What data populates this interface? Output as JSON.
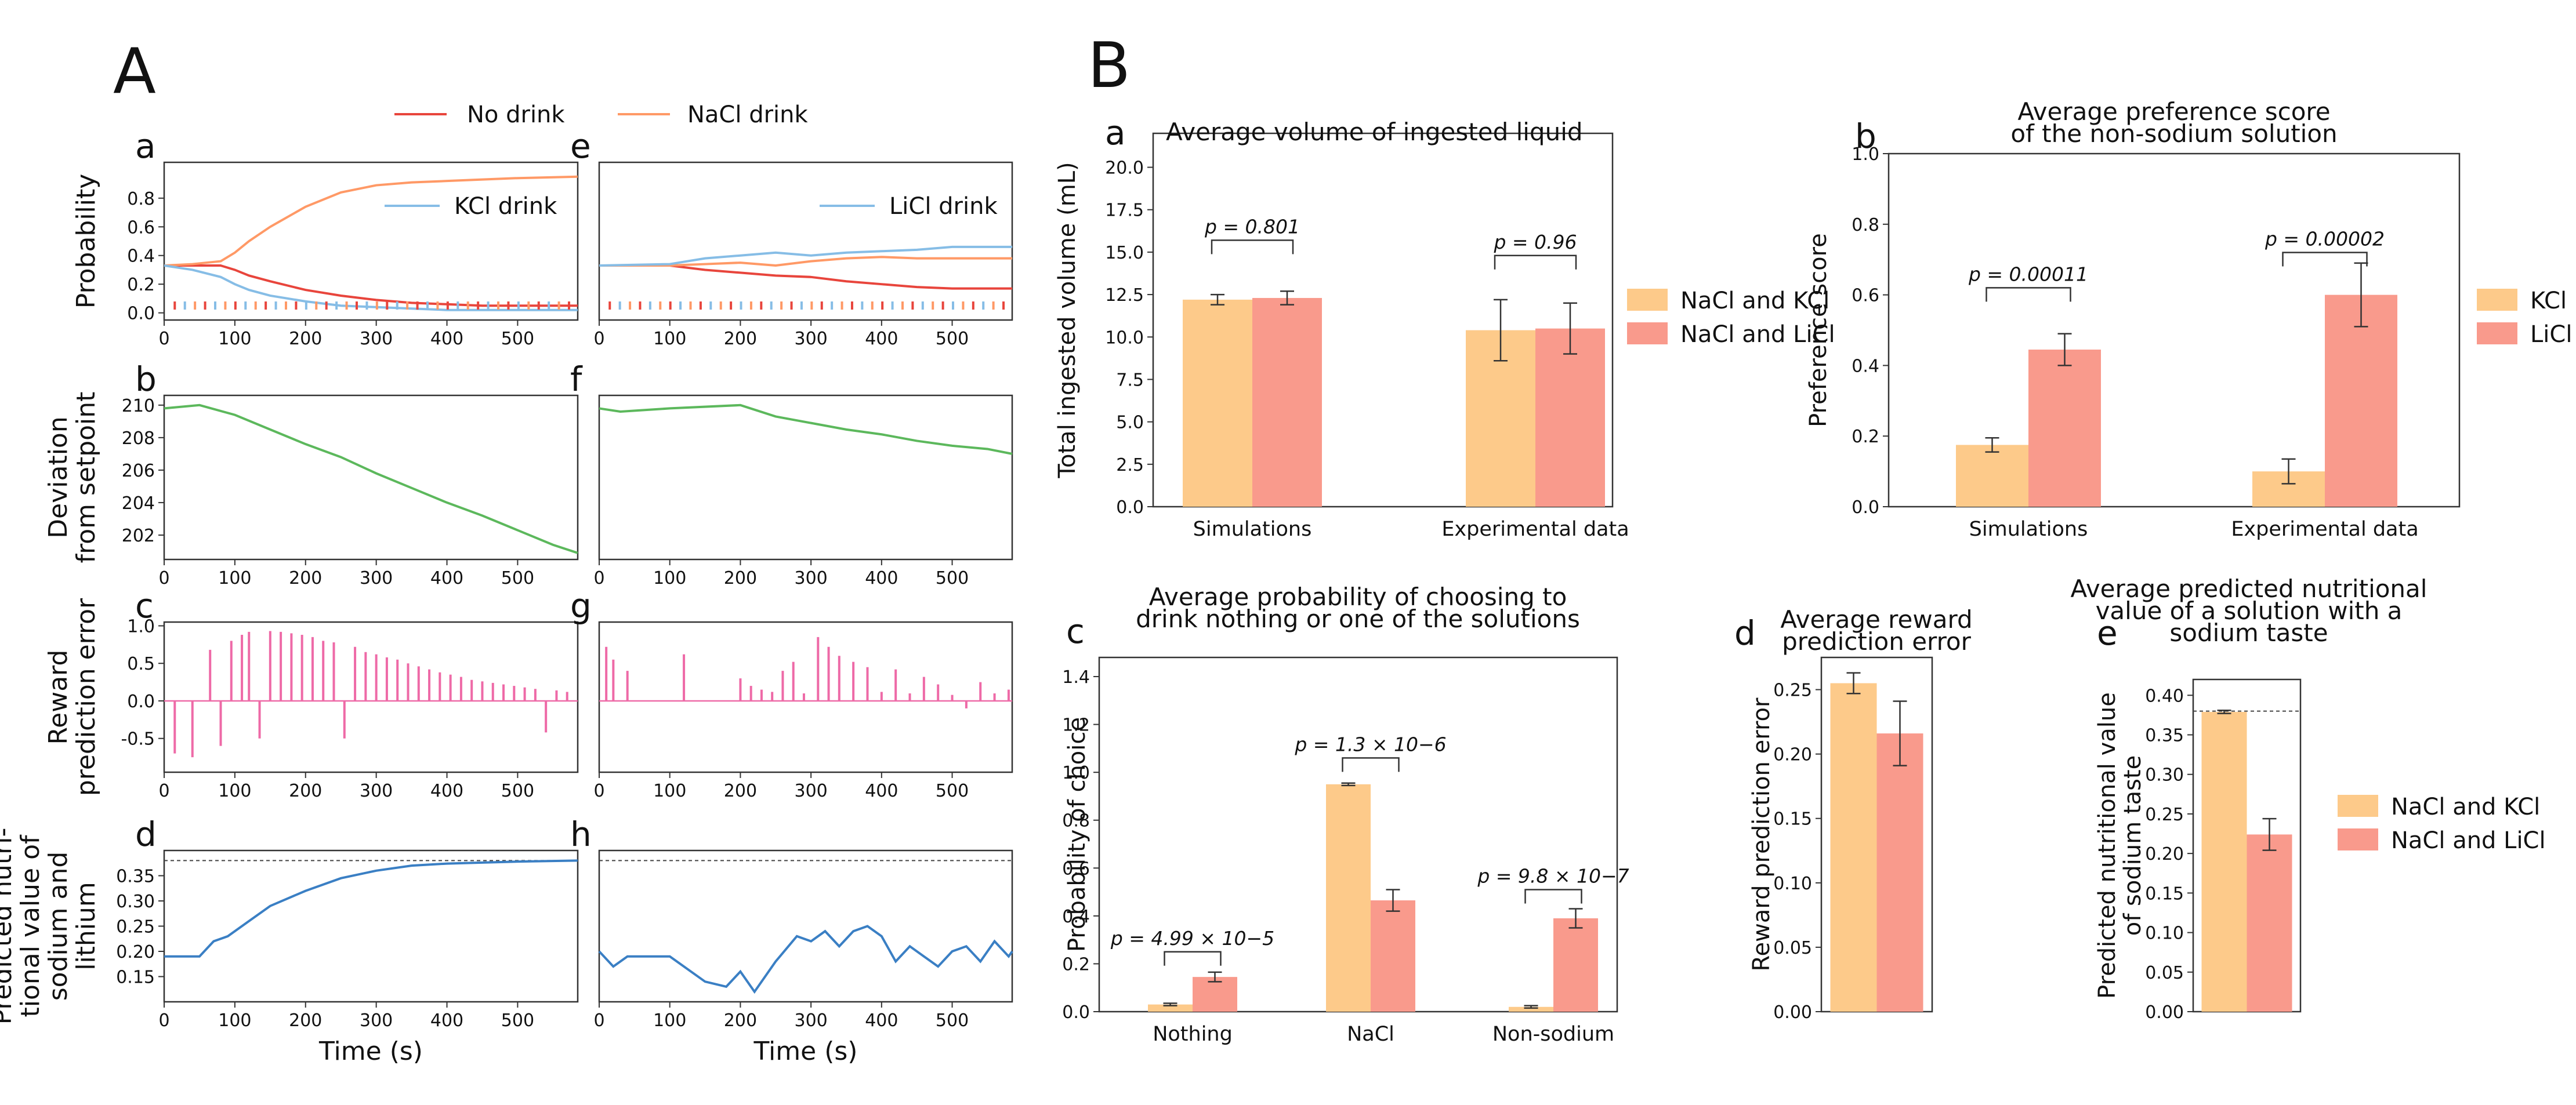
{
  "panel_labels": {
    "A": "A",
    "B": "B"
  },
  "colors": {
    "no_drink": "#e8453c",
    "nacl_drink": "#ff9966",
    "kcl_drink": "#86bde6",
    "licl_drink": "#86bde6",
    "deviation": "#5cb85c",
    "rpe": "#ee6aa7",
    "predicted": "#3a7fc4",
    "bar_orange": "#fdca8a",
    "bar_red": "#f99a8c"
  },
  "legend_A": {
    "no_drink": "No drink",
    "nacl_drink": "NaCl drink",
    "kcl_drink": "KCl drink",
    "licl_drink": "LiCl drink"
  },
  "chart_data": [
    {
      "id": "A.a",
      "type": "line",
      "label": "a",
      "ylabel": "Probability",
      "xlim": [
        0,
        585
      ],
      "ylim": [
        -0.05,
        1.05
      ],
      "xticks": [
        0,
        100,
        200,
        300,
        400,
        500
      ],
      "yticks": [
        0.0,
        0.2,
        0.4,
        0.6,
        0.8
      ],
      "x": [
        0,
        40,
        80,
        100,
        120,
        150,
        200,
        250,
        300,
        350,
        400,
        450,
        500,
        585
      ],
      "series": [
        {
          "name": "No drink",
          "values": [
            0.33,
            0.33,
            0.33,
            0.3,
            0.26,
            0.22,
            0.16,
            0.12,
            0.09,
            0.07,
            0.06,
            0.05,
            0.05,
            0.05
          ]
        },
        {
          "name": "NaCl drink",
          "values": [
            0.33,
            0.34,
            0.36,
            0.42,
            0.5,
            0.6,
            0.74,
            0.84,
            0.89,
            0.91,
            0.92,
            0.93,
            0.94,
            0.95
          ]
        },
        {
          "name": "KCl drink",
          "values": [
            0.33,
            0.3,
            0.25,
            0.2,
            0.16,
            0.12,
            0.08,
            0.05,
            0.04,
            0.03,
            0.02,
            0.02,
            0.02,
            0.02
          ]
        }
      ]
    },
    {
      "id": "A.e",
      "type": "line",
      "label": "e",
      "xlim": [
        0,
        585
      ],
      "ylim": [
        -0.05,
        1.05
      ],
      "xticks": [
        0,
        100,
        200,
        300,
        400,
        500
      ],
      "x": [
        0,
        100,
        150,
        200,
        250,
        300,
        350,
        400,
        450,
        500,
        585
      ],
      "series": [
        {
          "name": "No drink",
          "values": [
            0.33,
            0.33,
            0.3,
            0.28,
            0.26,
            0.25,
            0.22,
            0.2,
            0.18,
            0.17,
            0.17
          ]
        },
        {
          "name": "NaCl drink",
          "values": [
            0.33,
            0.33,
            0.34,
            0.35,
            0.33,
            0.36,
            0.38,
            0.39,
            0.38,
            0.38,
            0.38
          ]
        },
        {
          "name": "LiCl drink",
          "values": [
            0.33,
            0.34,
            0.38,
            0.4,
            0.42,
            0.4,
            0.42,
            0.43,
            0.44,
            0.46,
            0.46
          ]
        }
      ]
    },
    {
      "id": "A.b",
      "type": "line",
      "label": "b",
      "ylabel": "Deviation\nfrom setpoint",
      "xlim": [
        0,
        585
      ],
      "ylim": [
        200.5,
        210.6
      ],
      "xticks": [
        0,
        100,
        200,
        300,
        400,
        500
      ],
      "yticks": [
        202,
        204,
        206,
        208,
        210
      ],
      "x": [
        0,
        50,
        100,
        150,
        200,
        250,
        300,
        350,
        400,
        450,
        500,
        550,
        585
      ],
      "series": [
        {
          "name": "deviation",
          "values": [
            209.8,
            210.0,
            209.4,
            208.5,
            207.6,
            206.8,
            205.8,
            204.9,
            204.0,
            203.2,
            202.3,
            201.4,
            200.9
          ]
        }
      ]
    },
    {
      "id": "A.f",
      "type": "line",
      "label": "f",
      "xlim": [
        0,
        585
      ],
      "ylim": [
        200.5,
        210.6
      ],
      "xticks": [
        0,
        100,
        200,
        300,
        400,
        500
      ],
      "x": [
        0,
        30,
        100,
        200,
        250,
        300,
        350,
        400,
        450,
        500,
        550,
        585
      ],
      "series": [
        {
          "name": "deviation",
          "values": [
            209.8,
            209.6,
            209.8,
            210.0,
            209.3,
            208.9,
            208.5,
            208.2,
            207.8,
            207.5,
            207.3,
            207.0
          ]
        }
      ]
    },
    {
      "id": "A.c",
      "type": "stem",
      "label": "c",
      "ylabel": "Reward\nprediction error",
      "xlim": [
        0,
        585
      ],
      "ylim": [
        -0.95,
        1.05
      ],
      "xticks": [
        0,
        100,
        200,
        300,
        400,
        500
      ],
      "yticks": [
        -0.5,
        0.0,
        0.5,
        1.0
      ],
      "x": [
        15,
        40,
        65,
        80,
        95,
        110,
        120,
        135,
        150,
        165,
        180,
        195,
        210,
        225,
        240,
        255,
        270,
        285,
        300,
        315,
        330,
        345,
        360,
        375,
        390,
        405,
        420,
        435,
        450,
        465,
        480,
        495,
        510,
        525,
        540,
        555,
        570
      ],
      "values": [
        -0.7,
        -0.75,
        0.68,
        -0.6,
        0.8,
        0.88,
        0.92,
        -0.5,
        0.93,
        0.92,
        0.9,
        0.88,
        0.85,
        0.8,
        0.78,
        -0.5,
        0.72,
        0.65,
        0.62,
        0.58,
        0.55,
        0.5,
        0.46,
        0.42,
        0.38,
        0.35,
        0.32,
        0.28,
        0.26,
        0.24,
        0.22,
        0.2,
        0.18,
        0.16,
        -0.42,
        0.14,
        0.12
      ]
    },
    {
      "id": "A.g",
      "type": "stem",
      "label": "g",
      "xlim": [
        0,
        585
      ],
      "ylim": [
        -0.95,
        1.05
      ],
      "xticks": [
        0,
        100,
        200,
        300,
        400,
        500
      ],
      "x": [
        10,
        20,
        40,
        120,
        200,
        215,
        230,
        245,
        260,
        275,
        290,
        310,
        325,
        340,
        360,
        380,
        400,
        420,
        440,
        460,
        480,
        500,
        520,
        540,
        560,
        580
      ],
      "values": [
        0.72,
        0.55,
        0.4,
        0.62,
        0.3,
        0.2,
        0.15,
        0.12,
        0.4,
        0.52,
        0.1,
        0.85,
        0.72,
        0.6,
        0.52,
        0.45,
        0.12,
        0.42,
        0.1,
        0.32,
        0.22,
        0.08,
        -0.1,
        0.25,
        0.1,
        0.15
      ]
    },
    {
      "id": "A.d",
      "type": "line",
      "label": "d",
      "ylabel": "Predicted nutri-\ntional value of\nsodium and\nlithium",
      "xlabel": "Time (s)",
      "xlim": [
        0,
        585
      ],
      "ylim": [
        0.1,
        0.4
      ],
      "xticks": [
        0,
        100,
        200,
        300,
        400,
        500
      ],
      "yticks": [
        0.15,
        0.2,
        0.25,
        0.3,
        0.35
      ],
      "dashed_ref": 0.38,
      "x": [
        0,
        50,
        70,
        90,
        120,
        150,
        200,
        250,
        300,
        350,
        400,
        450,
        500,
        585
      ],
      "series": [
        {
          "name": "predicted",
          "values": [
            0.19,
            0.19,
            0.22,
            0.23,
            0.26,
            0.29,
            0.32,
            0.345,
            0.36,
            0.37,
            0.374,
            0.376,
            0.378,
            0.38
          ]
        }
      ]
    },
    {
      "id": "A.h",
      "type": "line",
      "label": "h",
      "xlabel": "Time (s)",
      "xlim": [
        0,
        585
      ],
      "ylim": [
        0.1,
        0.4
      ],
      "xticks": [
        0,
        100,
        200,
        300,
        400,
        500
      ],
      "dashed_ref": 0.38,
      "x": [
        0,
        20,
        40,
        100,
        120,
        150,
        180,
        200,
        220,
        250,
        280,
        300,
        320,
        340,
        360,
        380,
        400,
        420,
        440,
        460,
        480,
        500,
        520,
        540,
        560,
        580,
        585
      ],
      "series": [
        {
          "name": "predicted",
          "values": [
            0.2,
            0.17,
            0.19,
            0.19,
            0.17,
            0.14,
            0.13,
            0.16,
            0.12,
            0.18,
            0.23,
            0.22,
            0.24,
            0.21,
            0.24,
            0.25,
            0.23,
            0.18,
            0.21,
            0.19,
            0.17,
            0.2,
            0.21,
            0.18,
            0.22,
            0.19,
            0.2
          ]
        }
      ]
    },
    {
      "id": "B.a",
      "type": "bar",
      "label": "a",
      "title": "Average volume of ingested liquid",
      "ylabel": "Total ingested volume (mL)",
      "ylim": [
        0,
        22.0
      ],
      "yticks": [
        0.0,
        2.5,
        5.0,
        7.5,
        10.0,
        12.5,
        15.0,
        17.5,
        20.0
      ],
      "categories": [
        "Simulations",
        "Experimental data"
      ],
      "series": [
        {
          "name": "NaCl and KCl",
          "values": [
            12.2,
            10.4
          ],
          "errors": [
            0.3,
            1.8
          ]
        },
        {
          "name": "NaCl and LiCl",
          "values": [
            12.3,
            10.5
          ],
          "errors": [
            0.4,
            1.5
          ]
        }
      ],
      "pvalues": [
        "p = 0.801",
        "p = 0.96"
      ]
    },
    {
      "id": "B.b",
      "type": "bar",
      "label": "b",
      "title": "Average preference score\nof the non-sodium solution",
      "ylabel": "Preference score",
      "ylim": [
        0,
        1.0
      ],
      "yticks": [
        0.0,
        0.2,
        0.4,
        0.6,
        0.8,
        1.0
      ],
      "categories": [
        "Simulations",
        "Experimental data"
      ],
      "series": [
        {
          "name": "KCl",
          "values": [
            0.175,
            0.1
          ],
          "errors": [
            0.02,
            0.035
          ]
        },
        {
          "name": "LiCl",
          "values": [
            0.445,
            0.6
          ],
          "errors": [
            0.045,
            0.09
          ]
        }
      ],
      "pvalues": [
        "p = 0.00011",
        "p = 0.00002"
      ]
    },
    {
      "id": "B.c",
      "type": "bar",
      "label": "c",
      "title": "Average probability of choosing to\ndrink nothing or one of the solutions",
      "ylabel": "Probability of choice",
      "ylim": [
        0,
        1.48
      ],
      "yticks": [
        0.0,
        0.2,
        0.4,
        0.6,
        0.8,
        1.0,
        1.2,
        1.4
      ],
      "categories": [
        "Nothing",
        "NaCl",
        "Non-sodium"
      ],
      "series": [
        {
          "name": "NaCl and KCl",
          "values": [
            0.03,
            0.95,
            0.02
          ],
          "errors": [
            0.005,
            0.005,
            0.005
          ]
        },
        {
          "name": "NaCl and LiCl",
          "values": [
            0.145,
            0.465,
            0.39
          ],
          "errors": [
            0.02,
            0.045,
            0.04
          ]
        }
      ],
      "pvalues": [
        "p = 4.99 × 10−5",
        "p = 1.3 × 10−6",
        "p = 9.8 × 10−7"
      ]
    },
    {
      "id": "B.d",
      "type": "bar",
      "label": "d",
      "title": "Average reward\nprediction error",
      "ylabel": "Reward prediction error",
      "ylim": [
        0,
        0.275
      ],
      "yticks": [
        0.0,
        0.05,
        0.1,
        0.15,
        0.2,
        0.25
      ],
      "series": [
        {
          "name": "NaCl and KCl",
          "values": [
            0.255
          ],
          "errors": [
            0.008
          ]
        },
        {
          "name": "NaCl and LiCl",
          "values": [
            0.216
          ],
          "errors": [
            0.025
          ]
        }
      ]
    },
    {
      "id": "B.e",
      "type": "bar",
      "label": "e",
      "title": "Average predicted nutritional\nvalue of a solution with a\nsodium taste",
      "ylabel": "Predicted nutritional value\nof sodium taste",
      "ylim": [
        0,
        0.42
      ],
      "yticks": [
        0.0,
        0.05,
        0.1,
        0.15,
        0.2,
        0.25,
        0.3,
        0.35,
        0.4
      ],
      "dashed_ref": 0.38,
      "series": [
        {
          "name": "NaCl and KCl",
          "values": [
            0.379
          ],
          "errors": [
            0.002
          ]
        },
        {
          "name": "NaCl and LiCl",
          "values": [
            0.224
          ],
          "errors": [
            0.02
          ]
        }
      ]
    }
  ]
}
